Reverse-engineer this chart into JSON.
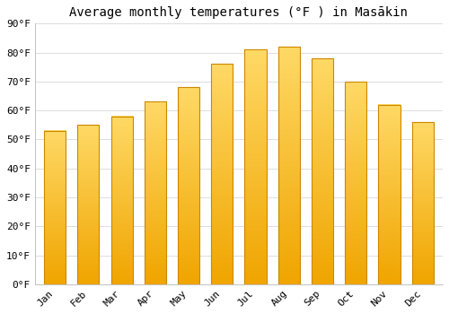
{
  "title": "Average monthly temperatures (°F ) in Masākin",
  "months": [
    "Jan",
    "Feb",
    "Mar",
    "Apr",
    "May",
    "Jun",
    "Jul",
    "Aug",
    "Sep",
    "Oct",
    "Nov",
    "Dec"
  ],
  "values": [
    53,
    55,
    58,
    63,
    68,
    76,
    81,
    82,
    78,
    70,
    62,
    56
  ],
  "bar_color_top": "#FFD966",
  "bar_color_bottom": "#F0A500",
  "bar_border_color": "#CC8800",
  "background_color": "#FFFFFF",
  "grid_color": "#DDDDDD",
  "ylim": [
    0,
    90
  ],
  "yticks": [
    0,
    10,
    20,
    30,
    40,
    50,
    60,
    70,
    80,
    90
  ],
  "ytick_labels": [
    "0°F",
    "10°F",
    "20°F",
    "30°F",
    "40°F",
    "50°F",
    "60°F",
    "70°F",
    "80°F",
    "90°F"
  ],
  "title_fontsize": 10,
  "tick_fontsize": 8,
  "font_family": "monospace"
}
